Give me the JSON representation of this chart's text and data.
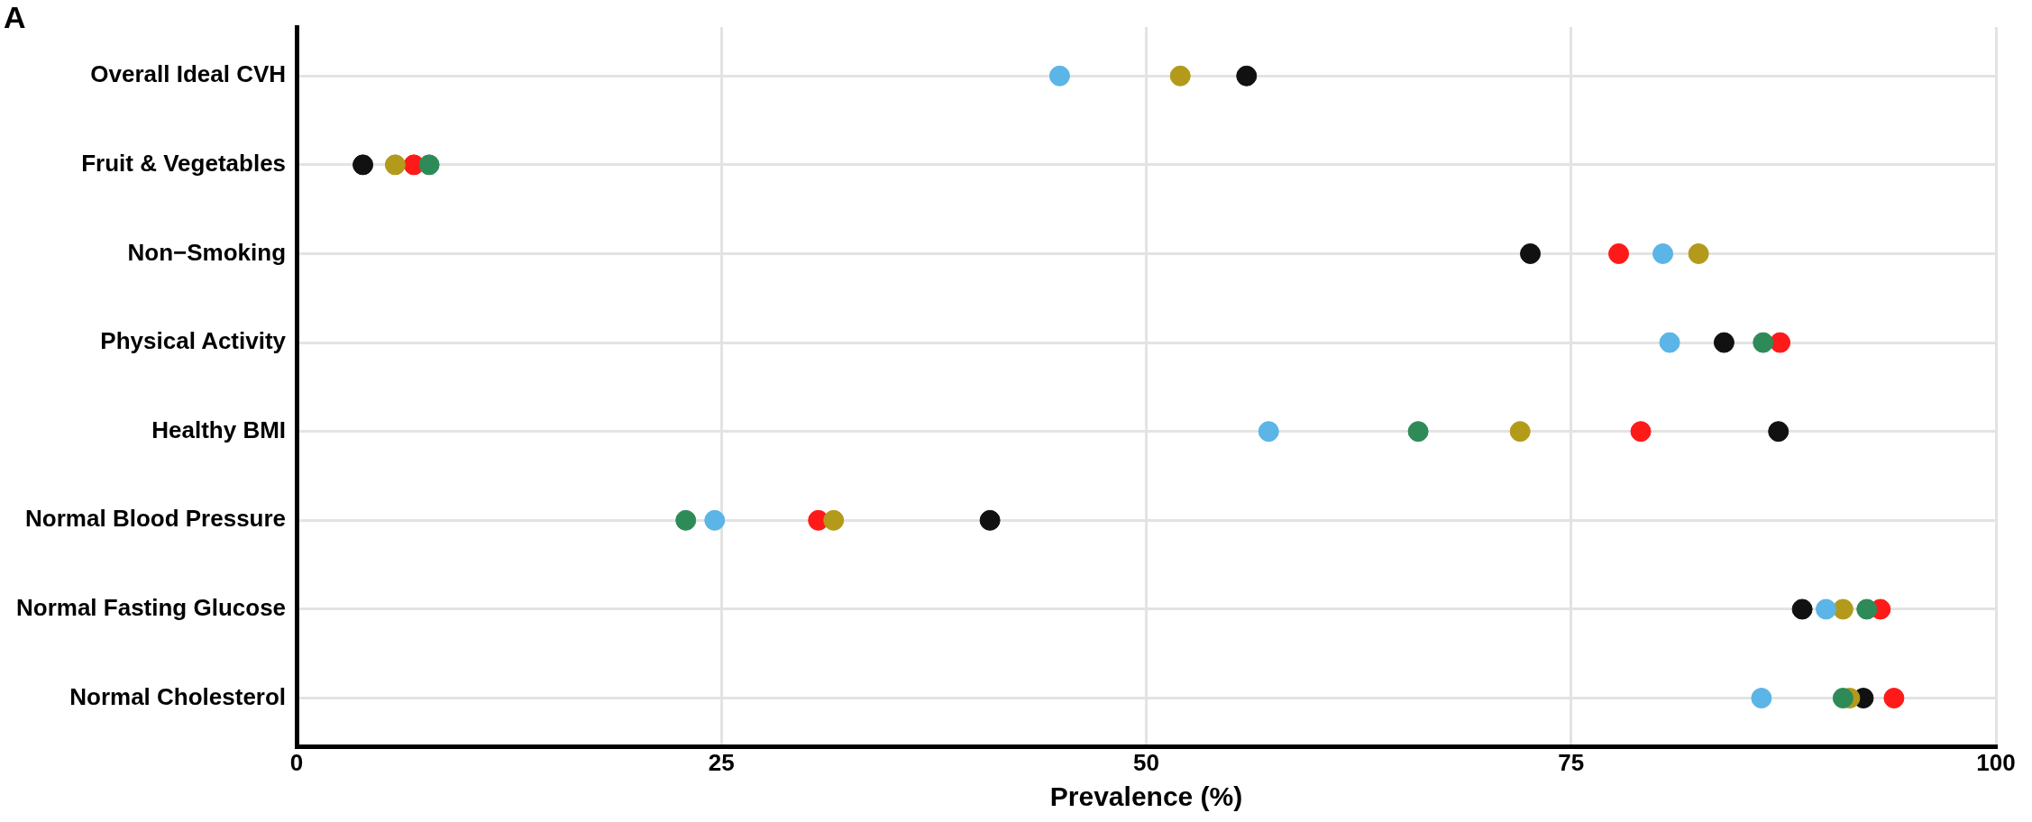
{
  "chart_data": {
    "type": "scatter",
    "title": "A",
    "orientation": "horizontal",
    "xlabel": "Prevalence (%)",
    "categories": [
      "Overall Ideal CVH",
      "Fruit & Vegetables",
      "Non−Smoking",
      "Physical Activity",
      "Healthy BMI",
      "Normal Blood Pressure",
      "Normal Fasting Glucose",
      "Normal Cholesterol"
    ],
    "series": [
      {
        "color": "#5bb5e6",
        "values": [
          44.9,
          null,
          80.4,
          80.8,
          57.2,
          24.6,
          90.0,
          86.2
        ]
      },
      {
        "color": "#2e8b57",
        "values": [
          null,
          7.8,
          null,
          86.3,
          66.0,
          22.9,
          92.4,
          91.0
        ]
      },
      {
        "color": "#b39a1a",
        "values": [
          52.0,
          5.8,
          82.5,
          null,
          72.0,
          31.6,
          91.0,
          91.4
        ]
      },
      {
        "color": "#ff1a1a",
        "values": [
          null,
          6.9,
          77.8,
          87.3,
          79.1,
          30.7,
          93.2,
          94.0
        ]
      },
      {
        "color": "#111111",
        "values": [
          55.9,
          3.9,
          72.6,
          84.0,
          87.2,
          40.8,
          88.6,
          92.2
        ]
      }
    ],
    "xlim": [
      0,
      100
    ],
    "xticks": [
      0,
      25,
      50,
      75,
      100
    ],
    "grid": true,
    "legend": false,
    "marker": "circle"
  }
}
